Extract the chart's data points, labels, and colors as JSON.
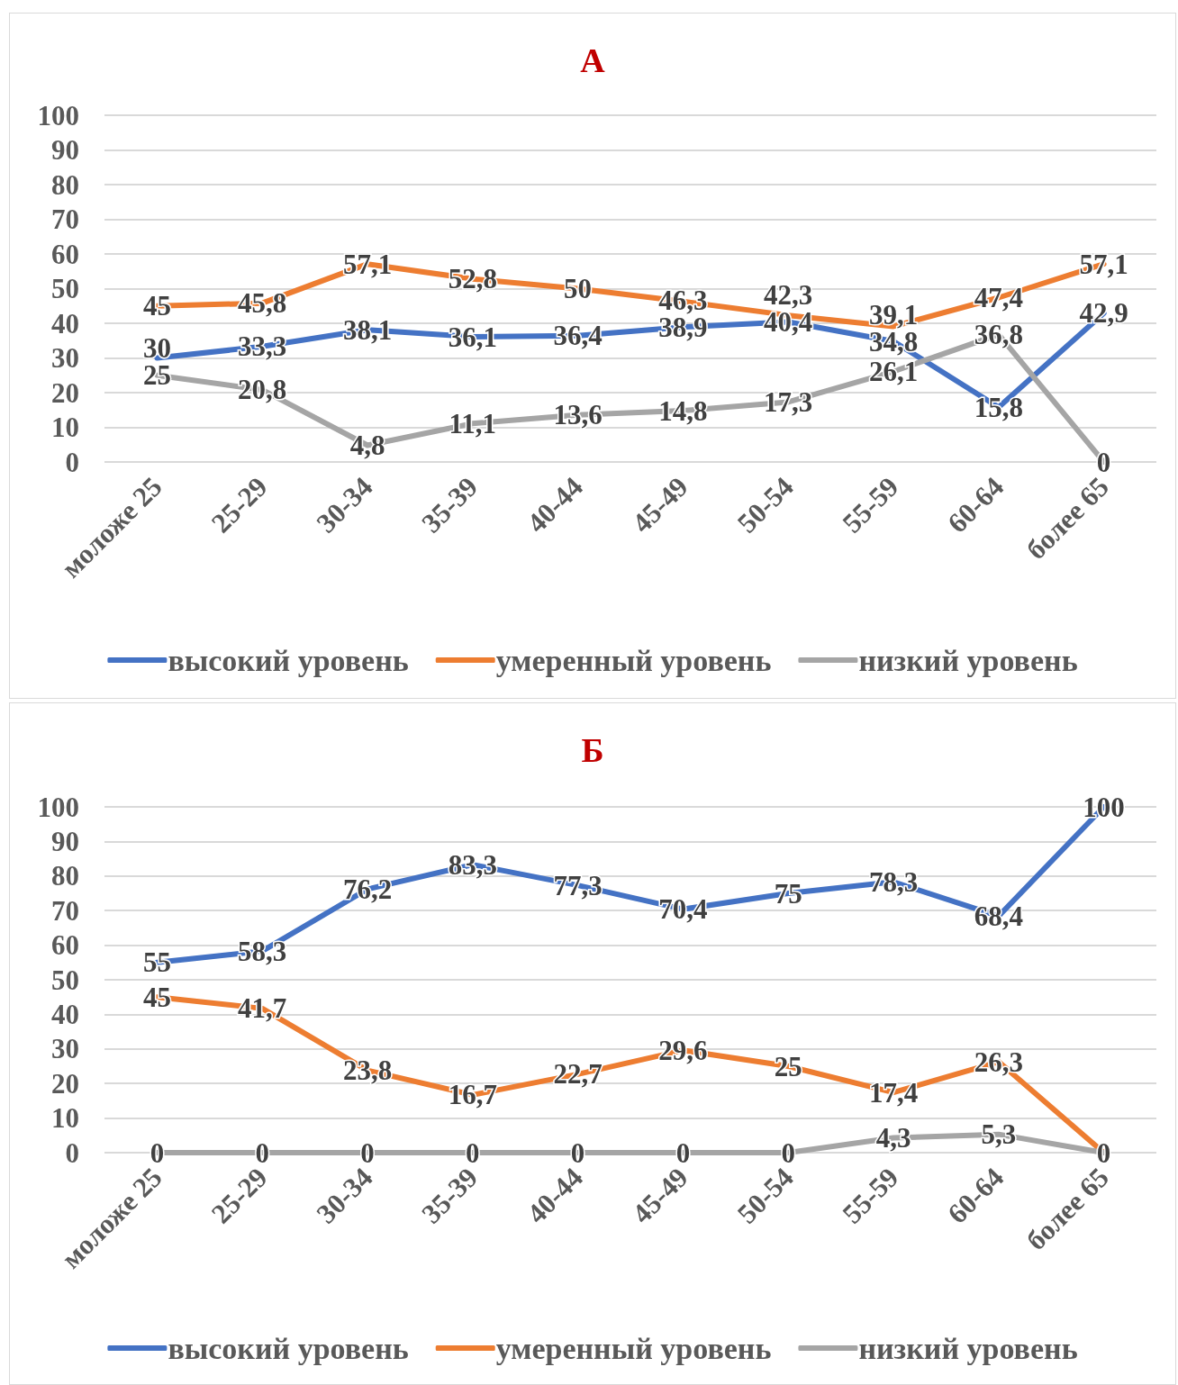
{
  "chart_data": [
    {
      "type": "line",
      "title": "А",
      "categories": [
        "моложе 25",
        "25-29",
        "30-34",
        "35-39",
        "40-44",
        "45-49",
        "50-54",
        "55-59",
        "60-64",
        "более 65"
      ],
      "series": [
        {
          "name": "высокий уровень",
          "color": "#4472c4",
          "values": [
            30,
            33.3,
            38.1,
            36.1,
            36.4,
            38.9,
            40.4,
            34.8,
            15.8,
            42.9
          ],
          "value_labels": [
            "30",
            "33,3",
            "38,1",
            "36,1",
            "36,4",
            "38,9",
            "40,4",
            "34,8",
            "15,8",
            "42,9"
          ]
        },
        {
          "name": "умеренный уровень",
          "color": "#ed7d31",
          "values": [
            45,
            45.8,
            57.1,
            52.8,
            50,
            46.3,
            42.3,
            39.1,
            47.4,
            57.1
          ],
          "value_labels": [
            "45",
            "45,8",
            "57,1",
            "52,8",
            "50",
            "46,3",
            "42,3",
            "39,1",
            "47,4",
            "57,1"
          ]
        },
        {
          "name": "низкий уровень",
          "color": "#a5a5a5",
          "values": [
            25,
            20.8,
            4.8,
            11.1,
            13.6,
            14.8,
            17.3,
            26.1,
            36.8,
            0
          ],
          "value_labels": [
            "25",
            "20,8",
            "4,8",
            "11,1",
            "13,6",
            "14,8",
            "17,3",
            "26,1",
            "36,8",
            "0"
          ]
        }
      ],
      "ylim": [
        0,
        100
      ],
      "yticks": [
        0,
        10,
        20,
        30,
        40,
        50,
        60,
        70,
        80,
        90,
        100
      ],
      "grid": "y",
      "legend": "bottom",
      "marker": "none",
      "line_style": "solid"
    },
    {
      "type": "line",
      "title": "Б",
      "categories": [
        "моложе 25",
        "25-29",
        "30-34",
        "35-39",
        "40-44",
        "45-49",
        "50-54",
        "55-59",
        "60-64",
        "более 65"
      ],
      "series": [
        {
          "name": "высокий уровень",
          "color": "#4472c4",
          "values": [
            55,
            58.3,
            76.2,
            83.3,
            77.3,
            70.4,
            75,
            78.3,
            68.4,
            100
          ],
          "value_labels": [
            "55",
            "58,3",
            "76,2",
            "83,3",
            "77,3",
            "70,4",
            "75",
            "78,3",
            "68,4",
            "100"
          ]
        },
        {
          "name": "умеренный уровень",
          "color": "#ed7d31",
          "values": [
            45,
            41.7,
            23.8,
            16.7,
            22.7,
            29.6,
            25,
            17.4,
            26.3,
            0
          ],
          "value_labels": [
            "45",
            "41,7",
            "23,8",
            "16,7",
            "22,7",
            "29,6",
            "25",
            "17,4",
            "26,3",
            "0"
          ]
        },
        {
          "name": "низкий уровень",
          "color": "#a5a5a5",
          "values": [
            0,
            0,
            0,
            0,
            0,
            0,
            0,
            4.3,
            5.3,
            0
          ],
          "value_labels": [
            "0",
            "0",
            "0",
            "0",
            "0",
            "0",
            "0",
            "4,3",
            "5,3",
            null
          ]
        }
      ],
      "ylim": [
        0,
        100
      ],
      "yticks": [
        0,
        10,
        20,
        30,
        40,
        50,
        60,
        70,
        80,
        90,
        100
      ],
      "grid": "y",
      "legend": "bottom",
      "marker": "none",
      "line_style": "solid"
    }
  ]
}
